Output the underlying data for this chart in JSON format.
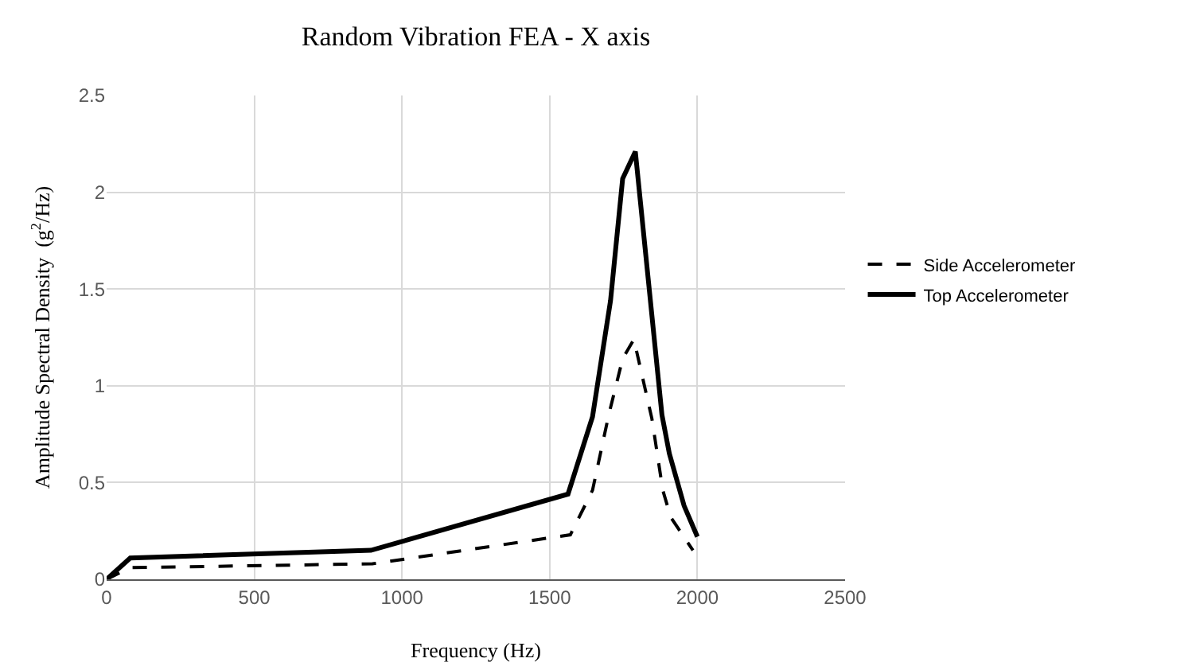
{
  "chart_data": {
    "type": "line",
    "title": "Random Vibration FEA - X axis",
    "xlabel": "Frequency (Hz)",
    "ylabel": "Amplitude Spectral Density  (g$^{2}$/Hz)",
    "xlim": [
      0,
      2500
    ],
    "xticks": [
      0,
      500,
      1000,
      1500,
      2000,
      2500
    ],
    "ylim": [
      0,
      2.5
    ],
    "yticks": [
      0,
      0.5,
      1,
      1.5,
      2,
      2.5
    ],
    "grid": true,
    "legend": "right",
    "marker": "none",
    "series": [
      {
        "name": "Side Accelerometer",
        "color": "#000000",
        "line_style": "dashed",
        "x": [
          0,
          80,
          900,
          1570,
          1645,
          1700,
          1747,
          1785,
          1846,
          1883,
          1910,
          1985
        ],
        "values": [
          0,
          0.06,
          0.08,
          0.23,
          0.46,
          0.85,
          1.14,
          1.24,
          0.83,
          0.46,
          0.32,
          0.15
        ]
      },
      {
        "name": "Top Accelerometer",
        "color": "#000000",
        "line_style": "solid",
        "x": [
          0,
          80,
          895,
          1562,
          1645,
          1706,
          1747,
          1790,
          1880,
          1905,
          1955,
          2000
        ],
        "values": [
          0,
          0.11,
          0.15,
          0.44,
          0.84,
          1.44,
          2.07,
          2.21,
          0.85,
          0.65,
          0.38,
          0.22
        ]
      }
    ]
  }
}
